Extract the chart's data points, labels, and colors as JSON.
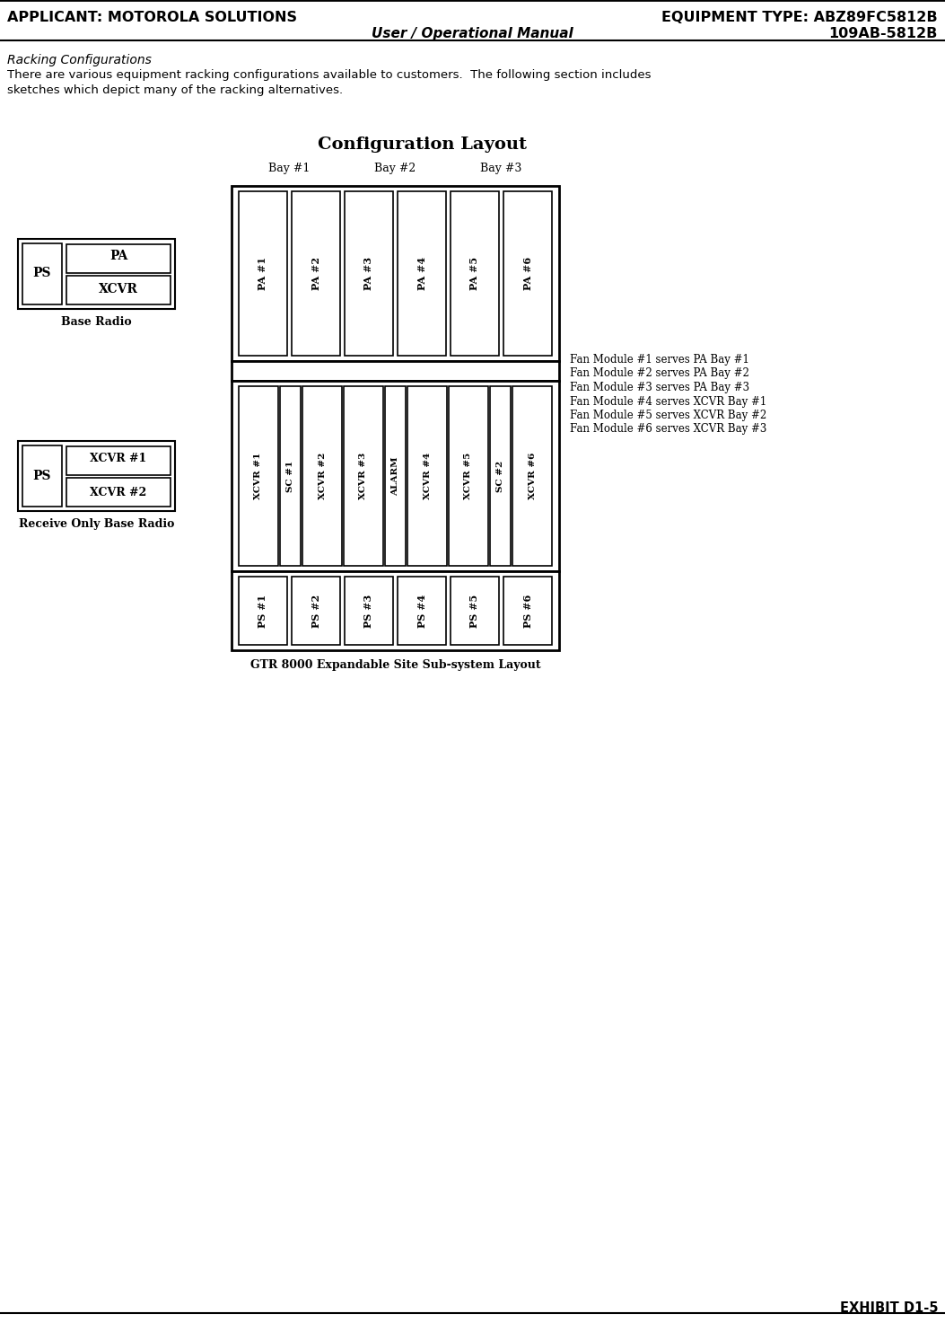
{
  "title_left": "APPLICANT: MOTOROLA SOLUTIONS",
  "title_right1": "EQUIPMENT TYPE: ABZ89FC5812B",
  "title_right2": "109AB-5812B",
  "subtitle": "User / Operational Manual",
  "section_title": "Racking Configurations",
  "section_text1": "There are various equipment racking configurations available to customers.  The following section includes",
  "section_text2": "sketches which depict many of the racking alternatives.",
  "diagram_title": "Configuration Layout",
  "gtr_label": "GTR 8000 Expandable Site Sub-system Layout",
  "bay_labels": [
    "Bay #1",
    "Bay #2",
    "Bay #3"
  ],
  "pa_labels": [
    "PA #1",
    "PA #2",
    "PA #3",
    "PA #4",
    "PA #5",
    "PA #6"
  ],
  "xcvr_labels": [
    "XCVR #1",
    "SC #1",
    "XCVR #2",
    "XCVR #3",
    "ALARM",
    "XCVR #4",
    "XCVR #5",
    "SC #2",
    "XCVR #6"
  ],
  "ps_labels": [
    "PS #1",
    "PS #2",
    "PS #3",
    "PS #4",
    "PS #5",
    "PS #6"
  ],
  "fan_notes": [
    "Fan Module #1 serves PA Bay #1",
    "Fan Module #2 serves PA Bay #2",
    "Fan Module #3 serves PA Bay #3",
    "Fan Module #4 serves XCVR Bay #1",
    "Fan Module #5 serves XCVR Bay #2",
    "Fan Module #6 serves XCVR Bay #3"
  ],
  "base_radio_label": "Base Radio",
  "receive_only_label": "Receive Only Base Radio",
  "exhibit_label": "EXHIBIT D1-5"
}
